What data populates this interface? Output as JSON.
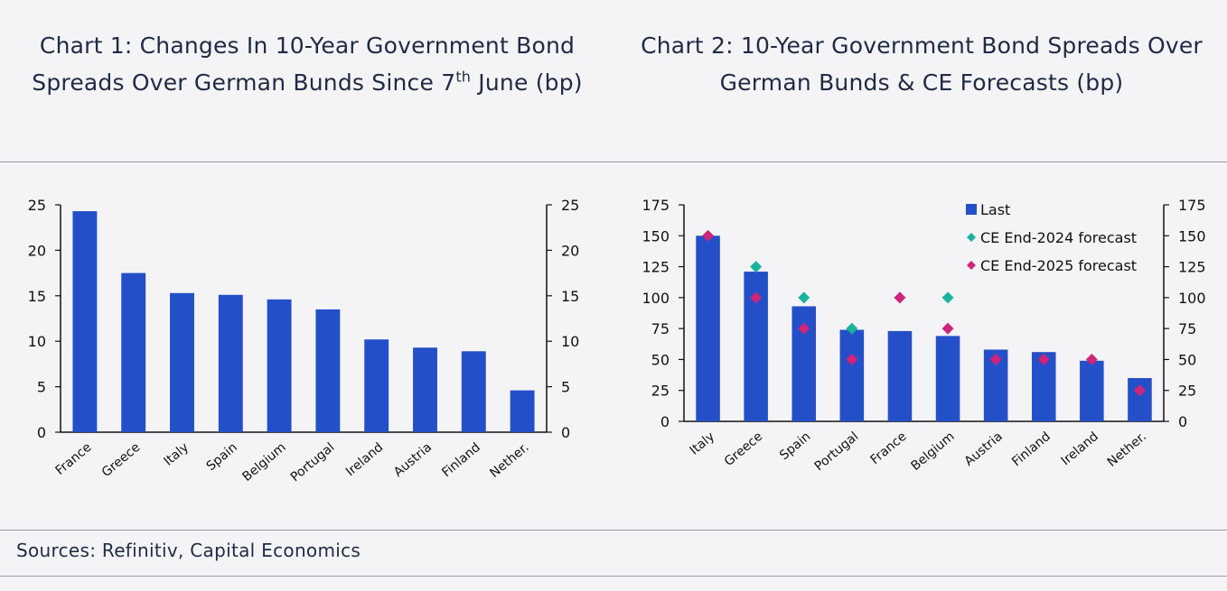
{
  "chart1_title": {
    "main": "Chart 1: Changes In 10-Year Government Bond Spreads Over German Bunds Since 7",
    "sup": "th",
    "tail": " June (bp)"
  },
  "chart2_title": "Chart 2: 10-Year Government Bond Spreads Over German Bunds & CE Forecasts (bp)",
  "sources": "Sources: Refinitiv, Capital Economics",
  "colors": {
    "bar": "#2350c8",
    "forecast2024": "#1ab3a0",
    "forecast2025": "#d0247a"
  },
  "chart_data": [
    {
      "type": "bar",
      "title": "Chart 1: Changes In 10-Year Government Bond Spreads Over German Bunds Since 7th June (bp)",
      "categories": [
        "France",
        "Greece",
        "Italy",
        "Spain",
        "Belgium",
        "Portugal",
        "Ireland",
        "Austria",
        "Finland",
        "Nether."
      ],
      "values": [
        24.3,
        17.5,
        15.3,
        15.1,
        14.6,
        13.5,
        10.2,
        9.3,
        8.9,
        4.6
      ],
      "ylim": [
        0,
        25
      ],
      "yticks": [
        0,
        5,
        10,
        15,
        20,
        25
      ],
      "xlabel": "",
      "ylabel": "",
      "grid": false
    },
    {
      "type": "bar",
      "title": "Chart 2: 10-Year Government Bond Spreads Over German Bunds & CE Forecasts (bp)",
      "categories": [
        "Italy",
        "Greece",
        "Spain",
        "Portugal",
        "France",
        "Belgium",
        "Austria",
        "Finland",
        "Ireland",
        "Nether."
      ],
      "series": [
        {
          "name": "Last",
          "kind": "bar",
          "values": [
            150,
            121,
            93,
            74,
            73,
            69,
            58,
            56,
            49,
            35
          ]
        },
        {
          "name": "CE End-2024 forecast",
          "kind": "marker",
          "values": [
            null,
            125,
            100,
            75,
            null,
            100,
            null,
            null,
            null,
            null
          ]
        },
        {
          "name": "CE End-2025 forecast",
          "kind": "marker",
          "values": [
            150,
            100,
            75,
            50,
            100,
            75,
            50,
            50,
            50,
            25
          ]
        }
      ],
      "ylim": [
        0,
        175
      ],
      "yticks": [
        0,
        25,
        50,
        75,
        100,
        125,
        150,
        175
      ],
      "legend_position": "top-right",
      "xlabel": "",
      "ylabel": "",
      "grid": false
    }
  ]
}
